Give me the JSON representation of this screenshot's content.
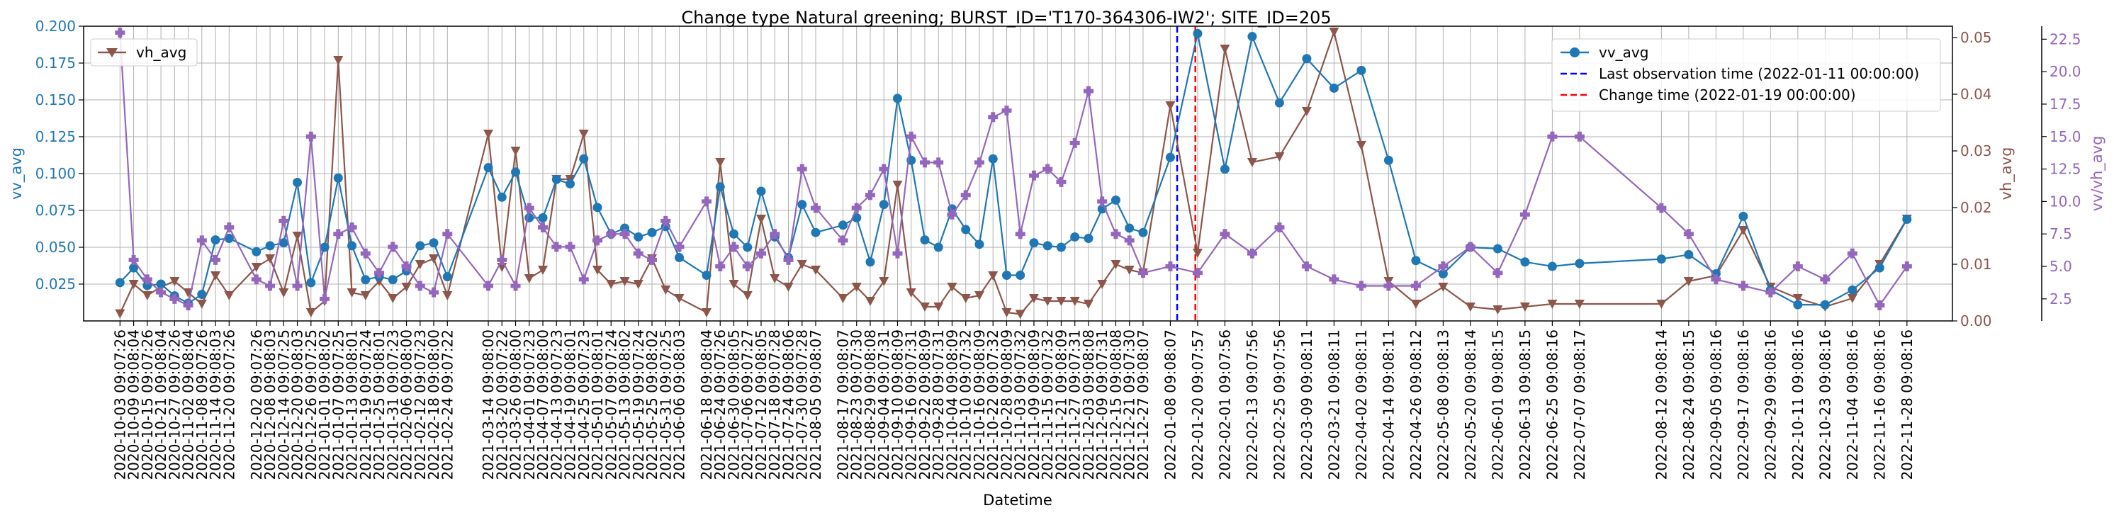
{
  "chart_data": {
    "type": "line",
    "title": "Change type Natural greening; BURST_ID='T170-364306-IW2'; SITE_ID=205",
    "xlabel": "Datetime",
    "ylabel_left": "vv_avg",
    "ylabel_right1": "vh_avg",
    "ylabel_right2": "vv/vh_avg",
    "colors": {
      "vv": "#1f77b4",
      "vh": "#8c564b",
      "ratio": "#9467bd",
      "last_obs": "#0000ff",
      "change": "#ff0000",
      "grid": "#b0b0b0"
    },
    "ylim_left": [
      0.0,
      0.2
    ],
    "ylim_right1": [
      0.0,
      0.052
    ],
    "ylim_right2": [
      0.8,
      23.5
    ],
    "xlim": [
      "2020-09-17",
      "2022-12-18"
    ],
    "grid": true,
    "legend_vh": {
      "label": "vh_avg",
      "placement": "top-left"
    },
    "legend_main": {
      "placement": "top-right",
      "entries": [
        "vv_avg",
        "Last observation time (2022-01-11 00:00:00)",
        "Change time (2022-01-19 00:00:00)"
      ]
    },
    "vlines": [
      {
        "name": "Last observation time",
        "date": "2022-01-11"
      },
      {
        "name": "Change time",
        "date": "2022-01-19"
      }
    ],
    "ticks_left": [
      "0.025",
      "0.050",
      "0.075",
      "0.100",
      "0.125",
      "0.150",
      "0.175",
      "0.200"
    ],
    "ticks_right1": [
      "0.00",
      "0.01",
      "0.02",
      "0.03",
      "0.04",
      "0.05"
    ],
    "ticks_right2": [
      "2.5",
      "5.0",
      "7.5",
      "10.0",
      "12.5",
      "15.0",
      "17.5",
      "20.0",
      "22.5"
    ],
    "x_tick_labels": [
      "2020-10-03 09:07:26",
      "2020-10-09 09:08:04",
      "2020-10-15 09:07:26",
      "2020-10-21 09:08:04",
      "2020-10-27 09:07:26",
      "2020-11-02 09:08:04",
      "2020-11-08 09:07:26",
      "2020-11-14 09:08:03",
      "2020-11-20 09:07:26",
      "2020-12-02 09:07:26",
      "2020-12-08 09:08:03",
      "2020-12-14 09:07:25",
      "2020-12-20 09:08:03",
      "2020-12-26 09:07:25",
      "2021-01-01 09:08:02",
      "2021-01-07 09:07:25",
      "2021-01-13 09:08:01",
      "2021-01-19 09:07:24",
      "2021-01-25 09:08:01",
      "2021-01-31 09:07:23",
      "2021-02-06 09:08:00",
      "2021-02-12 09:07:23",
      "2021-02-18 09:08:00",
      "2021-02-24 09:07:22",
      "2021-03-14 09:08:00",
      "2021-03-20 09:07:22",
      "2021-03-26 09:08:00",
      "2021-04-01 09:07:23",
      "2021-04-07 09:08:00",
      "2021-04-13 09:07:23",
      "2021-04-19 09:08:01",
      "2021-04-25 09:07:23",
      "2021-05-01 09:08:01",
      "2021-05-07 09:07:24",
      "2021-05-13 09:08:02",
      "2021-05-19 09:07:24",
      "2021-05-25 09:08:02",
      "2021-05-31 09:07:25",
      "2021-06-06 09:08:03",
      "2021-06-18 09:08:04",
      "2021-06-24 09:07:26",
      "2021-06-30 09:08:05",
      "2021-07-06 09:07:27",
      "2021-07-12 09:08:05",
      "2021-07-18 09:07:28",
      "2021-07-24 09:08:06",
      "2021-07-30 09:07:28",
      "2021-08-05 09:08:07",
      "2021-08-17 09:08:07",
      "2021-08-23 09:07:30",
      "2021-08-29 09:08:08",
      "2021-09-04 09:07:31",
      "2021-09-10 09:08:09",
      "2021-09-16 09:07:31",
      "2021-09-22 09:08:09",
      "2021-09-28 09:07:31",
      "2021-10-04 09:08:09",
      "2021-10-10 09:07:32",
      "2021-10-16 09:08:09",
      "2021-10-22 09:07:32",
      "2021-10-28 09:08:09",
      "2021-11-03 09:07:32",
      "2021-11-09 09:08:09",
      "2021-11-15 09:07:32",
      "2021-11-21 09:08:09",
      "2021-11-27 09:07:31",
      "2021-12-03 09:08:08",
      "2021-12-09 09:07:31",
      "2021-12-15 09:08:08",
      "2021-12-21 09:07:30",
      "2021-12-27 09:08:07",
      "2022-01-08 09:08:07",
      "2022-01-20 09:07:57",
      "2022-02-01 09:07:56",
      "2022-02-13 09:07:56",
      "2022-02-25 09:07:56",
      "2022-03-09 09:08:11",
      "2022-03-21 09:08:11",
      "2022-04-02 09:08:11",
      "2022-04-14 09:08:11",
      "2022-04-26 09:08:12",
      "2022-05-08 09:08:13",
      "2022-05-20 09:08:14",
      "2022-06-01 09:08:15",
      "2022-06-13 09:08:15",
      "2022-06-25 09:08:16",
      "2022-07-07 09:08:17",
      "2022-08-12 09:08:14",
      "2022-08-24 09:08:15",
      "2022-09-05 09:08:16",
      "2022-09-17 09:08:16",
      "2022-09-29 09:08:16",
      "2022-10-11 09:08:16",
      "2022-10-23 09:08:16",
      "2022-11-04 09:08:16",
      "2022-11-16 09:08:16",
      "2022-11-28 09:08:16"
    ],
    "x": [
      "2020-10-03",
      "2020-10-09",
      "2020-10-15",
      "2020-10-21",
      "2020-10-27",
      "2020-11-02",
      "2020-11-08",
      "2020-11-14",
      "2020-11-20",
      "2020-12-02",
      "2020-12-08",
      "2020-12-14",
      "2020-12-20",
      "2020-12-26",
      "2021-01-01",
      "2021-01-07",
      "2021-01-13",
      "2021-01-19",
      "2021-01-25",
      "2021-01-31",
      "2021-02-06",
      "2021-02-12",
      "2021-02-18",
      "2021-02-24",
      "2021-03-14",
      "2021-03-20",
      "2021-03-26",
      "2021-04-01",
      "2021-04-07",
      "2021-04-13",
      "2021-04-19",
      "2021-04-25",
      "2021-05-01",
      "2021-05-07",
      "2021-05-13",
      "2021-05-19",
      "2021-05-25",
      "2021-05-31",
      "2021-06-06",
      "2021-06-18",
      "2021-06-24",
      "2021-06-30",
      "2021-07-06",
      "2021-07-12",
      "2021-07-18",
      "2021-07-24",
      "2021-07-30",
      "2021-08-05",
      "2021-08-17",
      "2021-08-23",
      "2021-08-29",
      "2021-09-04",
      "2021-09-10",
      "2021-09-16",
      "2021-09-22",
      "2021-09-28",
      "2021-10-04",
      "2021-10-10",
      "2021-10-16",
      "2021-10-22",
      "2021-10-28",
      "2021-11-03",
      "2021-11-09",
      "2021-11-15",
      "2021-11-21",
      "2021-11-27",
      "2021-12-03",
      "2021-12-09",
      "2021-12-15",
      "2021-12-21",
      "2021-12-27",
      "2022-01-08",
      "2022-01-20",
      "2022-02-01",
      "2022-02-13",
      "2022-02-25",
      "2022-03-09",
      "2022-03-21",
      "2022-04-02",
      "2022-04-14",
      "2022-04-26",
      "2022-05-08",
      "2022-05-20",
      "2022-06-01",
      "2022-06-13",
      "2022-06-25",
      "2022-07-07",
      "2022-08-12",
      "2022-08-24",
      "2022-09-05",
      "2022-09-17",
      "2022-09-29",
      "2022-10-11",
      "2022-10-23",
      "2022-11-04",
      "2022-11-16",
      "2022-11-28"
    ],
    "series": [
      {
        "name": "vv_avg",
        "axis": "left",
        "marker": "circle",
        "values": [
          0.026,
          0.036,
          0.024,
          0.025,
          0.017,
          0.012,
          0.018,
          0.055,
          0.056,
          0.047,
          0.051,
          0.053,
          0.094,
          0.026,
          0.05,
          0.097,
          0.051,
          0.028,
          0.03,
          0.028,
          0.034,
          0.051,
          0.053,
          0.03,
          0.104,
          0.084,
          0.101,
          0.07,
          0.07,
          0.096,
          0.093,
          0.11,
          0.077,
          0.059,
          0.063,
          0.057,
          0.06,
          0.064,
          0.043,
          0.031,
          0.091,
          0.059,
          0.05,
          0.088,
          0.057,
          0.043,
          0.079,
          0.06,
          0.065,
          0.07,
          0.04,
          0.079,
          0.151,
          0.109,
          0.055,
          0.05,
          0.076,
          0.062,
          0.052,
          0.11,
          0.031,
          0.031,
          0.053,
          0.051,
          0.05,
          0.057,
          0.056,
          0.076,
          0.082,
          0.063,
          0.06,
          0.111,
          0.195,
          0.103,
          0.193,
          0.148,
          0.178,
          0.158,
          0.17,
          0.109,
          0.041,
          0.032,
          0.05,
          0.049,
          0.04,
          0.037,
          0.039,
          0.042,
          0.045,
          0.032,
          0.071,
          0.021,
          0.011,
          0.011,
          0.021,
          0.036,
          0.069
        ]
      },
      {
        "name": "vh_avg",
        "axis": "right1",
        "marker": "triangle-down",
        "values": [
          0.0013,
          0.0065,
          0.0045,
          0.006,
          0.007,
          0.005,
          0.003,
          0.008,
          0.0045,
          0.0095,
          0.011,
          0.005,
          0.015,
          0.0015,
          0.0035,
          0.046,
          0.005,
          0.0045,
          0.007,
          0.004,
          0.006,
          0.01,
          0.011,
          0.0045,
          0.033,
          0.0095,
          0.03,
          0.0075,
          0.009,
          0.025,
          0.025,
          0.033,
          0.009,
          0.0065,
          0.007,
          0.0065,
          0.011,
          0.0055,
          0.004,
          0.0015,
          0.028,
          0.0065,
          0.0045,
          0.018,
          0.0075,
          0.006,
          0.01,
          0.009,
          0.004,
          0.006,
          0.0035,
          0.007,
          0.024,
          0.005,
          0.0025,
          0.0025,
          0.006,
          0.004,
          0.0045,
          0.008,
          0.0015,
          0.0012,
          0.004,
          0.0035,
          0.0035,
          0.0035,
          0.003,
          0.0065,
          0.01,
          0.009,
          0.0085,
          0.038,
          0.012,
          0.048,
          0.028,
          0.029,
          0.037,
          0.051,
          0.031,
          0.007,
          0.003,
          0.006,
          0.0025,
          0.002,
          0.0025,
          0.003,
          0.003,
          0.003,
          0.007,
          0.008,
          0.016,
          0.006,
          0.004,
          0.0025,
          0.004,
          0.01,
          0.018
        ]
      },
      {
        "name": "vv/vh_avg",
        "axis": "right2",
        "marker": "plus-filled",
        "values": [
          23.0,
          5.5,
          4.0,
          3.0,
          2.5,
          2.0,
          7.0,
          5.5,
          8.0,
          4.0,
          3.5,
          8.5,
          3.5,
          15.0,
          2.5,
          7.5,
          8.0,
          6.0,
          4.5,
          6.5,
          5.0,
          3.5,
          3.0,
          7.5,
          3.5,
          5.5,
          3.5,
          9.5,
          8.0,
          6.5,
          6.5,
          4.0,
          7.0,
          7.5,
          7.5,
          6.0,
          5.5,
          8.5,
          6.5,
          10.0,
          5.0,
          6.5,
          5.0,
          6.0,
          7.5,
          5.5,
          12.5,
          9.5,
          7.0,
          9.5,
          10.5,
          12.5,
          6.0,
          15.0,
          13.0,
          13.0,
          9.0,
          10.5,
          13.0,
          16.5,
          17.0,
          7.5,
          12.0,
          12.5,
          11.5,
          14.5,
          18.5,
          10.0,
          7.5,
          7.0,
          4.5,
          5.0,
          4.5,
          7.5,
          6.0,
          8.0,
          5.0,
          4.0,
          3.5,
          3.5,
          3.5,
          5.0,
          6.5,
          4.5,
          9.0,
          15.0,
          15.0,
          9.5,
          7.5,
          4.0,
          3.5,
          3.0,
          5.0,
          4.0,
          6.0,
          2.0,
          5.0
        ]
      }
    ]
  }
}
